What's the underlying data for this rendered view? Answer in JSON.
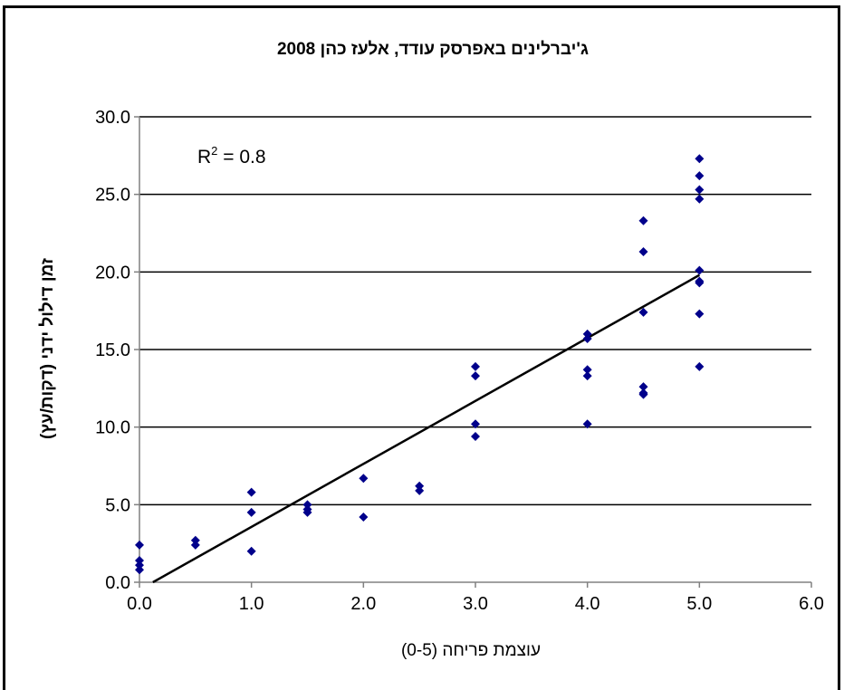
{
  "chart_data": {
    "type": "scatter",
    "title": "ג'יברלינים באפרסק עודד, אלעז כהן 2008",
    "xlabel": "עוצמת פריחה (0-5)",
    "ylabel": "זמן דילול ידני (דקות/עץ)",
    "xlim": [
      0,
      6
    ],
    "ylim": [
      0,
      30
    ],
    "x_ticks": [
      "0.0",
      "1.0",
      "2.0",
      "3.0",
      "4.0",
      "5.0",
      "6.0"
    ],
    "y_ticks": [
      "0.0",
      "5.0",
      "10.0",
      "15.0",
      "20.0",
      "25.0",
      "30.0"
    ],
    "grid": "horizontal",
    "marker_color": "#00008b",
    "annotation": {
      "label": "R",
      "superscript": "2",
      "value_text": " = 0.8"
    },
    "trendline": {
      "x": [
        0.12,
        5.0
      ],
      "y": [
        0.0,
        19.8
      ]
    },
    "points": {
      "x": [
        0,
        0,
        0,
        0,
        0.5,
        0.5,
        1,
        1,
        1,
        1.5,
        1.5,
        1.5,
        2,
        2,
        2.5,
        2.5,
        3,
        3,
        3,
        3,
        4,
        4,
        4,
        4,
        4,
        4.5,
        4.5,
        4.5,
        4.5,
        4.5,
        4.5,
        5,
        5,
        5,
        5,
        5,
        5,
        5,
        5,
        5
      ],
      "y": [
        2.4,
        1.4,
        1.1,
        0.8,
        2.7,
        2.4,
        5.8,
        4.5,
        2.0,
        5.0,
        4.7,
        4.5,
        6.7,
        4.2,
        6.2,
        5.9,
        13.9,
        13.3,
        10.2,
        9.4,
        16.0,
        15.7,
        13.7,
        13.3,
        10.2,
        23.3,
        21.3,
        17.4,
        12.6,
        12.2,
        12.1,
        27.3,
        26.2,
        25.3,
        24.7,
        20.1,
        19.4,
        19.3,
        17.3,
        13.9
      ]
    }
  }
}
